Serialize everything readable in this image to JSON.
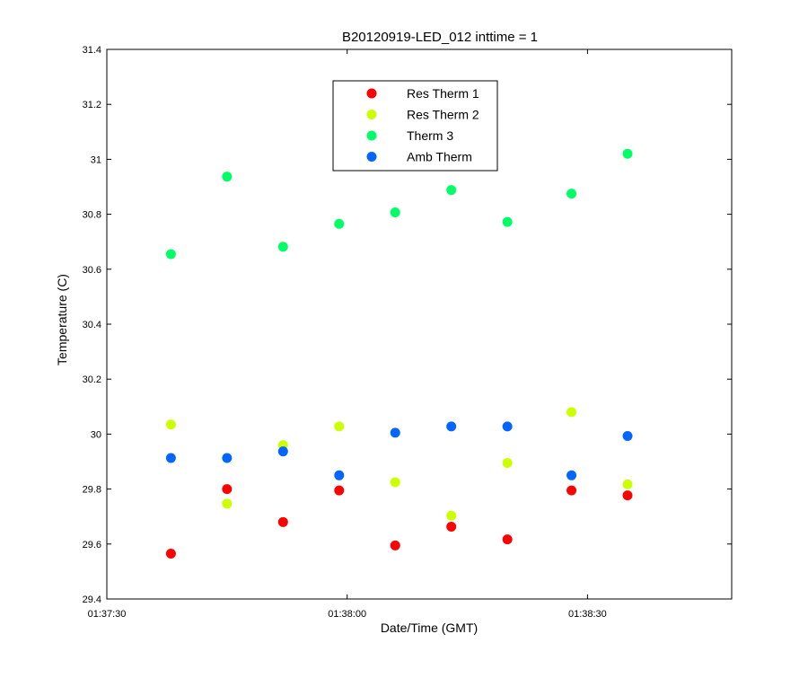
{
  "chart_data": {
    "type": "scatter",
    "title": "B20120919-LED_012 inttime = 1",
    "xlabel": "Date/Time (GMT)",
    "ylabel": "Temperature (C)",
    "x_ticks": [
      "01:37:30",
      "01:38:00",
      "01:38:30"
    ],
    "y_ticks": [
      "29.4",
      "29.6",
      "29.8",
      "30",
      "30.2",
      "30.4",
      "30.6",
      "30.8",
      "31",
      "31.2",
      "31.4"
    ],
    "xlim": [
      "01:37:30",
      "01:38:48"
    ],
    "ylim": [
      29.4,
      31.4
    ],
    "grid": false,
    "legend_position": "top-center",
    "x": [
      "01:37:38",
      "01:37:45",
      "01:37:52",
      "01:37:59",
      "01:38:06",
      "01:38:13",
      "01:38:20",
      "01:38:28",
      "01:38:35"
    ],
    "series": [
      {
        "name": "Res Therm 1",
        "color": "#ff0000",
        "values": [
          29.565,
          29.8,
          29.68,
          29.795,
          29.595,
          29.663,
          29.617,
          29.795,
          29.777
        ]
      },
      {
        "name": "Res Therm 2",
        "color": "#ccff00",
        "values": [
          30.035,
          29.747,
          29.96,
          30.028,
          29.825,
          29.703,
          29.895,
          30.08,
          29.817
        ]
      },
      {
        "name": "Therm 3",
        "color": "#00ff66",
        "values": [
          30.655,
          30.937,
          30.682,
          30.765,
          30.807,
          30.888,
          30.772,
          30.875,
          31.02
        ]
      },
      {
        "name": "Amb Therm",
        "color": "#0066ff",
        "values": [
          29.913,
          29.913,
          29.937,
          29.85,
          30.005,
          30.028,
          30.028,
          29.85,
          29.993
        ]
      }
    ]
  }
}
